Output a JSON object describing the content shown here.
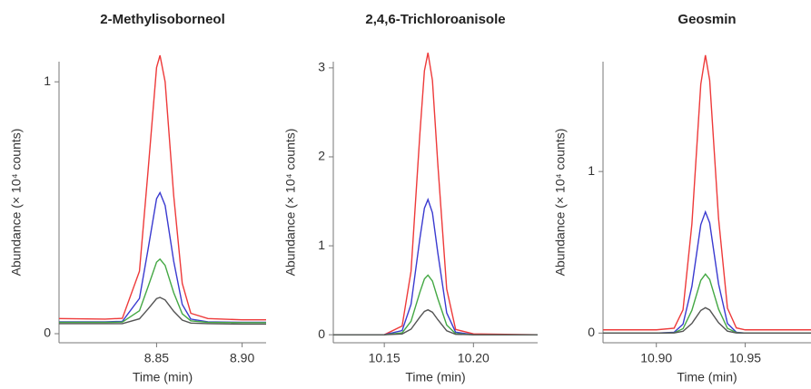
{
  "chart_data": [
    {
      "type": "line",
      "title": "2-Methylisoborneol",
      "x_label": "Time (min)",
      "y_label": "Abundance (× 10⁴ counts)",
      "x": [
        8.793,
        8.82,
        8.83,
        8.84,
        8.845,
        8.85,
        8.852,
        8.855,
        8.86,
        8.865,
        8.87,
        8.88,
        8.9,
        8.914
      ],
      "series": [
        {
          "color": "#ee3a3a",
          "values": [
            0.06,
            0.058,
            0.061,
            0.248,
            0.644,
            1.057,
            1.105,
            1.0,
            0.549,
            0.2,
            0.081,
            0.06,
            0.055,
            0.055
          ]
        },
        {
          "color": "#3a3ad0",
          "values": [
            0.047,
            0.047,
            0.049,
            0.14,
            0.334,
            0.536,
            0.56,
            0.509,
            0.288,
            0.116,
            0.058,
            0.047,
            0.045,
            0.045
          ]
        },
        {
          "color": "#44a844",
          "values": [
            0.045,
            0.045,
            0.046,
            0.091,
            0.186,
            0.284,
            0.296,
            0.271,
            0.163,
            0.079,
            0.051,
            0.045,
            0.044,
            0.044
          ]
        },
        {
          "color": "#555555",
          "values": [
            0.04,
            0.04,
            0.04,
            0.059,
            0.098,
            0.139,
            0.144,
            0.134,
            0.089,
            0.054,
            0.042,
            0.04,
            0.038,
            0.038
          ]
        }
      ],
      "xlim": [
        8.793,
        8.914
      ],
      "xticks": [
        {
          "value": 8.85,
          "label": "8.85"
        },
        {
          "value": 8.9,
          "label": "8.90"
        }
      ],
      "ylim": [
        -0.036,
        1.08
      ],
      "yticks": [
        0,
        1
      ]
    },
    {
      "type": "line",
      "title": "2,4,6-Trichloroanisole",
      "x_label": "Time (min)",
      "y_label": "Abundance (× 10⁴ counts)",
      "x": [
        10.1214,
        10.15,
        10.16,
        10.165,
        10.17,
        10.1725,
        10.1745,
        10.177,
        10.18,
        10.185,
        10.19,
        10.2,
        10.236
      ],
      "series": [
        {
          "color": "#ee3a3a",
          "values": [
            0,
            0,
            0.098,
            0.713,
            2.27,
            2.967,
            3.17,
            2.859,
            1.924,
            0.514,
            0.06,
            0.01,
            0
          ]
        },
        {
          "color": "#3a3ad0",
          "values": [
            0,
            0,
            0.047,
            0.342,
            1.088,
            1.423,
            1.52,
            1.371,
            0.923,
            0.246,
            0.029,
            0,
            0
          ]
        },
        {
          "color": "#44a844",
          "values": [
            0,
            0,
            0.021,
            0.151,
            0.48,
            0.627,
            0.67,
            0.604,
            0.407,
            0.109,
            0.013,
            0,
            0
          ]
        },
        {
          "color": "#555555",
          "values": [
            0,
            0,
            0.009,
            0.063,
            0.2,
            0.262,
            0.28,
            0.253,
            0.17,
            0.045,
            0.005,
            0,
            0
          ]
        }
      ],
      "xlim": [
        10.1214,
        10.236
      ],
      "xticks": [
        10.15,
        {
          "value": 10.2,
          "label": "10.20"
        }
      ],
      "ylim": [
        -0.09,
        3.07
      ],
      "yticks": [
        0,
        1,
        2,
        3
      ]
    },
    {
      "type": "line",
      "title": "Geosmin",
      "x_label": "Time (min)",
      "y_label": "Abundance (× 10⁴ counts)",
      "x": [
        10.87,
        10.9,
        10.91,
        10.915,
        10.92,
        10.925,
        10.9276,
        10.93,
        10.935,
        10.94,
        10.945,
        10.95,
        10.987
      ],
      "series": [
        {
          "color": "#ee3a3a",
          "values": [
            0.02,
            0.02,
            0.03,
            0.144,
            0.675,
            1.54,
            1.72,
            1.565,
            0.709,
            0.154,
            0.032,
            0.02,
            0.02
          ]
        },
        {
          "color": "#3a3ad0",
          "values": [
            0,
            0,
            0.005,
            0.055,
            0.289,
            0.671,
            0.75,
            0.682,
            0.304,
            0.059,
            0.005,
            0,
            0
          ]
        },
        {
          "color": "#44a844",
          "values": [
            0,
            0,
            0.002,
            0.027,
            0.141,
            0.326,
            0.365,
            0.332,
            0.148,
            0.029,
            0.003,
            0,
            0
          ]
        },
        {
          "color": "#555555",
          "values": [
            0,
            0,
            0.001,
            0.011,
            0.06,
            0.14,
            0.157,
            0.143,
            0.064,
            0.012,
            0.001,
            0,
            0
          ]
        }
      ],
      "xlim": [
        10.87,
        10.987
      ],
      "xticks": [
        {
          "value": 10.9,
          "label": "10.90"
        },
        10.95
      ],
      "ylim": [
        -0.06,
        1.68
      ],
      "yticks": [
        0,
        1
      ]
    }
  ]
}
